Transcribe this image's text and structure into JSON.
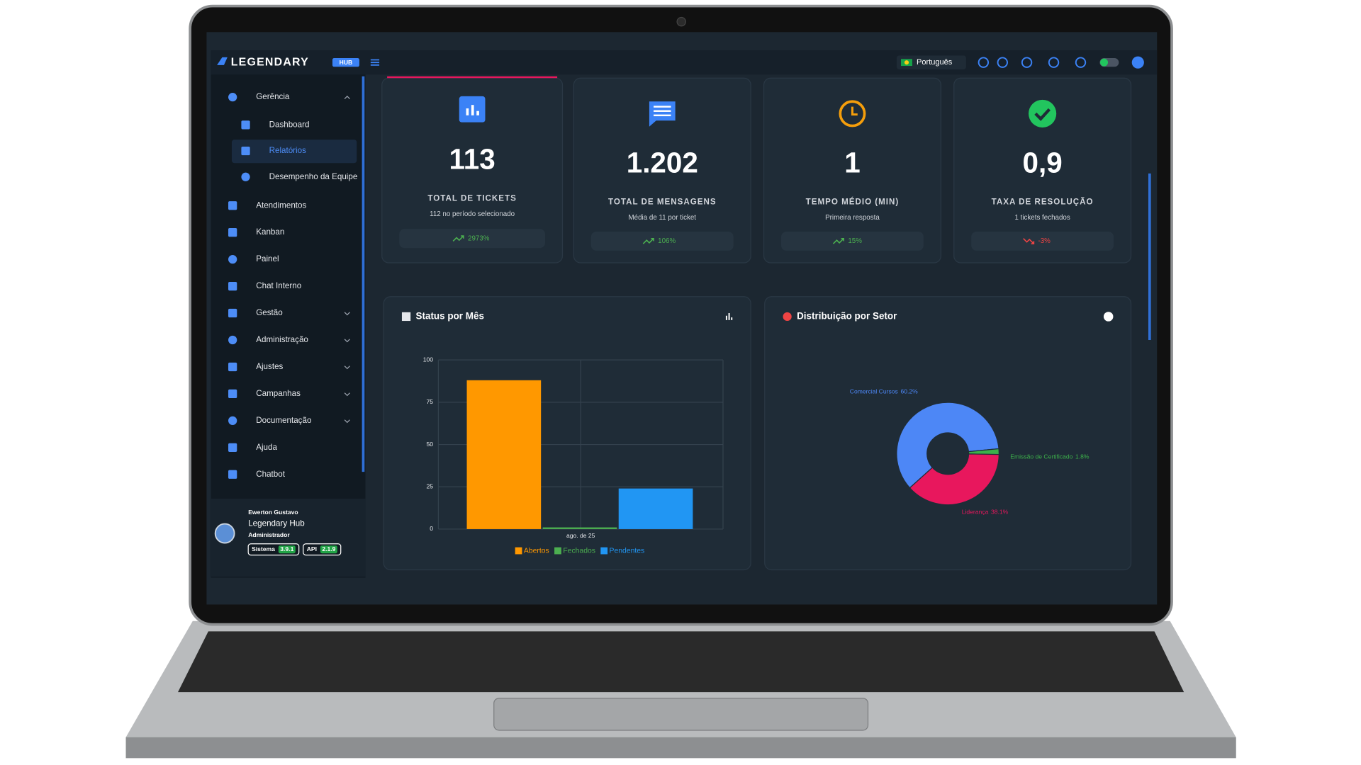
{
  "header": {
    "logo": "LEGENDARY",
    "logo_badge": "HUB",
    "language": "Português"
  },
  "menu": [
    "Gerência",
    "Dashboard",
    "Relatórios",
    "Desempenho da Equipe",
    "Atendimentos",
    "Kanban",
    "Painel",
    "Chat Interno",
    "Gestão",
    "Administração",
    "Ajustes",
    "Campanhas",
    "Documentação",
    "Ajuda",
    "Chatbot"
  ],
  "user": {
    "name": "Ewerton Gustavo",
    "company": "Legendary Hub",
    "role": "Administrador",
    "versions": [
      {
        "label": "Sistema",
        "value": "3.9.1"
      },
      {
        "label": "API",
        "value": "2.1.9"
      }
    ]
  },
  "cards": [
    {
      "value": "113",
      "label": "TOTAL DE TICKETS",
      "note": "112 no período selecionado",
      "trend": "2973%",
      "trend_color": "#4caf50",
      "icon_color": "#3b82f6"
    },
    {
      "value": "1.202",
      "label": "TOTAL DE MENSAGENS",
      "note": "Média de 11 por ticket",
      "trend": "106%",
      "trend_color": "#4caf50",
      "icon_color": "#3b82f6"
    },
    {
      "value": "1",
      "label": "TEMPO MÉDIO (MIN)",
      "note": "Primeira resposta",
      "trend": "15%",
      "trend_color": "#4caf50",
      "icon_color": "#f59e0b"
    },
    {
      "value": "0,9",
      "label": "TAXA DE RESOLUÇÃO",
      "note": "1 tickets fechados",
      "trend": "-3%",
      "trend_color": "#ef4444",
      "icon_color": "#22c55e"
    }
  ],
  "chart_data": [
    {
      "type": "bar",
      "title": "Status por Mês",
      "categories": [
        "ago. de 25"
      ],
      "series": [
        {
          "name": "Abertos",
          "color": "#ff9800",
          "values": [
            88
          ]
        },
        {
          "name": "Fechados",
          "color": "#4caf50",
          "values": [
            1
          ]
        },
        {
          "name": "Pendentes",
          "color": "#2196f3",
          "values": [
            24
          ]
        }
      ],
      "ylim": [
        0,
        100
      ],
      "yticks": [
        0,
        25,
        50,
        75,
        100
      ],
      "grid": true
    },
    {
      "type": "pie",
      "title": "Distribuição por Setor",
      "categories": [
        "Comercial Cursos",
        "Emissão de Certificado",
        "Liderança"
      ],
      "values": [
        60.2,
        1.8,
        38.1
      ],
      "value_labels": [
        "60.2%",
        "1.8%",
        "38.1%"
      ],
      "colors": [
        "#4d87f6",
        "#3cb04a",
        "#e8175d"
      ]
    }
  ]
}
